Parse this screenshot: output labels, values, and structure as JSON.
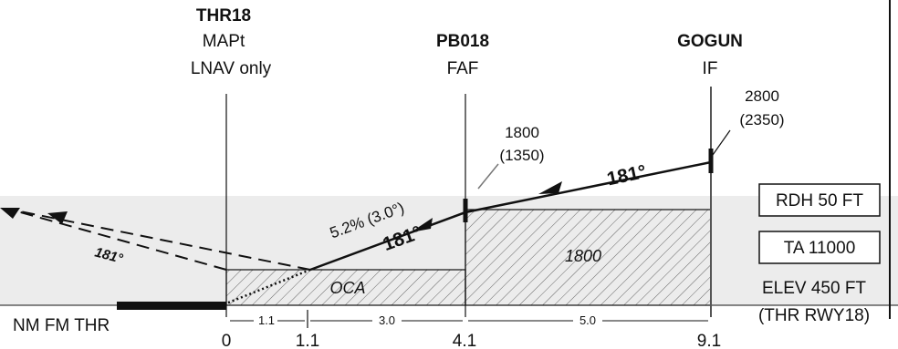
{
  "fixes": {
    "thr": {
      "name": "THR18",
      "line1": "MAPt",
      "line2": "LNAV only"
    },
    "faf": {
      "name": "PB018",
      "line1": "FAF"
    },
    "if": {
      "name": "GOGUN",
      "line1": "IF"
    }
  },
  "altitudes": {
    "faf": {
      "alt": "1800",
      "height": "(1350)"
    },
    "if": {
      "alt": "2800",
      "height": "(2350)"
    }
  },
  "tracks": {
    "inbound_upper": "181°",
    "inbound_lower": "181°",
    "missed": "181°",
    "glidepath": "5.2% (3.0°)"
  },
  "areas": {
    "oca": "OCA",
    "faf_segment": "1800"
  },
  "boxes": {
    "rdh": "RDH 50 FT",
    "ta": "TA 11000"
  },
  "elevation": {
    "line1": "ELEV 450 FT",
    "line2": "(THR RWY18)"
  },
  "distance_scale": {
    "label": "NM FM THR",
    "segments": [
      "1.1",
      "3.0",
      "5.0"
    ],
    "ticks": [
      "0",
      "1.1",
      "4.1",
      "9.1"
    ]
  },
  "colors": {
    "ink": "#111111",
    "hatch": "#555555",
    "shade": "#ececec"
  }
}
